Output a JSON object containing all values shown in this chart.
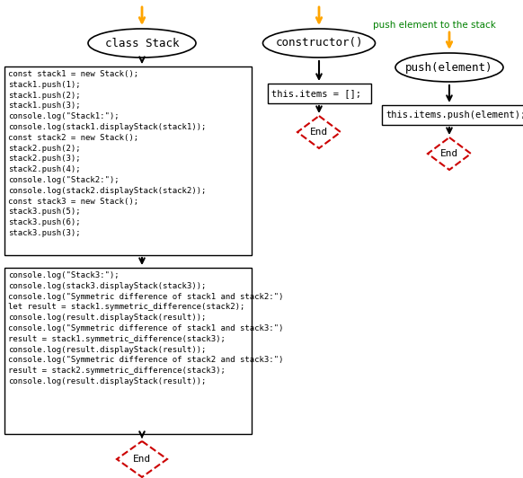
{
  "bg_color": "#ffffff",
  "orange": "#FFA500",
  "black": "#000000",
  "red": "#cc0000",
  "teal": "#008000",
  "box1_text": "const stack1 = new Stack();\nstack1.push(1);\nstack1.push(2);\nstack1.push(3);\nconsole.log(\"Stack1:\");\nconsole.log(stack1.displayStack(stack1));\nconst stack2 = new Stack();\nstack2.push(2);\nstack2.push(3);\nstack2.push(4);\nconsole.log(\"Stack2:\");\nconsole.log(stack2.displayStack(stack2));\nconst stack3 = new Stack();\nstack3.push(5);\nstack3.push(6);\nstack3.push(3);",
  "box2_text": "console.log(\"Stack3:\");\nconsole.log(stack3.displayStack(stack3));\nconsole.log(\"Symmetric difference of stack1 and stack2:\")\nlet result = stack1.symmetric_difference(stack2);\nconsole.log(result.displayStack(result));\nconsole.log(\"Symmetric difference of stack1 and stack3:\")\nresult = stack1.symmetric_difference(stack3);\nconsole.log(result.displayStack(result));\nconsole.log(\"Symmetric difference of stack2 and stack3:\")\nresult = stack2.symmetric_difference(stack3);\nconsole.log(result.displayStack(result));",
  "ellipse_main_label": "class Stack",
  "ellipse_constructor_label": "constructor()",
  "ellipse_push_label": "push(element)",
  "this_items_text": "this.items = [];",
  "push_items_text": "this.items.push(element);",
  "push_comment": "push element to the stack"
}
